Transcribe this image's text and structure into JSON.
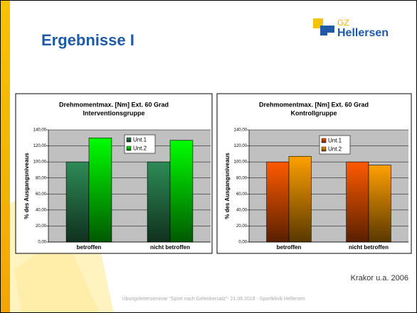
{
  "slide": {
    "title": "Ergebnisse I",
    "logo_gz": "GZ",
    "logo_name": "Hellersen",
    "source": "Krakor u.a. 2006",
    "footer": "Übungsleiterseminar “Sport nach Gelenkersatz”- 21.09.2019 - Sportklinik Hellersen"
  },
  "chart_data": [
    {
      "type": "bar",
      "title": [
        "Drehmomentmax. [Nm] Ext. 60 Grad",
        "Interventionsgruppe"
      ],
      "ylabel": "% des Ausgangsniveaus",
      "categories": [
        "betroffen",
        "nicht betroffen"
      ],
      "series": [
        {
          "name": "Unt.1",
          "color": "#2e8b57",
          "values": [
            100,
            100
          ]
        },
        {
          "name": "Unt.2",
          "color": "#00ff00",
          "values": [
            130,
            127
          ]
        }
      ],
      "ylim": [
        0,
        140
      ],
      "yticks": [
        {
          "value": 0,
          "label": "0,00"
        },
        {
          "value": 20,
          "label": "20,00"
        },
        {
          "value": 40,
          "label": "40,00"
        },
        {
          "value": 60,
          "label": "60,00"
        },
        {
          "value": 80,
          "label": "80,00"
        },
        {
          "value": 100,
          "label": "100,00"
        },
        {
          "value": 120,
          "label": "120,00"
        },
        {
          "value": 140,
          "label": "140,00"
        }
      ],
      "grid": true
    },
    {
      "type": "bar",
      "title": [
        "Drehmomentmax. [Nm] Ext. 60 Grad",
        "Kontrollgruppe"
      ],
      "ylabel": "% des Ausgangsniveaus",
      "categories": [
        "betroffen",
        "nicht betroffen"
      ],
      "series": [
        {
          "name": "Unt.1",
          "color": "#ff5a00",
          "values": [
            100,
            100
          ]
        },
        {
          "name": "Unt.2",
          "color": "#ffa000",
          "values": [
            107,
            96
          ]
        }
      ],
      "ylim": [
        0,
        140
      ],
      "yticks": [
        {
          "value": 0,
          "label": "0,00"
        },
        {
          "value": 20,
          "label": "20,00"
        },
        {
          "value": 40,
          "label": "40,00"
        },
        {
          "value": 60,
          "label": "60,00"
        },
        {
          "value": 80,
          "label": "80,00"
        },
        {
          "value": 100,
          "label": "100,00"
        },
        {
          "value": 120,
          "label": "120,00"
        },
        {
          "value": 140,
          "label": "140,00"
        }
      ],
      "grid": true
    }
  ]
}
